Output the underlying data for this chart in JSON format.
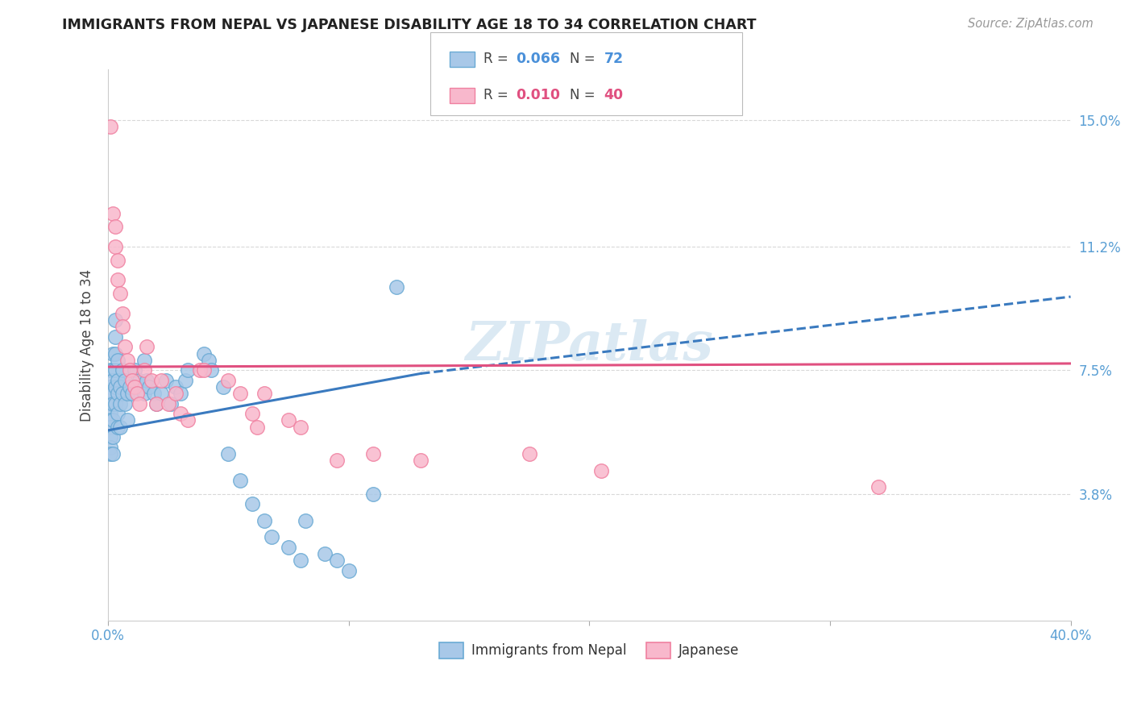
{
  "title": "IMMIGRANTS FROM NEPAL VS JAPANESE DISABILITY AGE 18 TO 34 CORRELATION CHART",
  "source": "Source: ZipAtlas.com",
  "ylabel": "Disability Age 18 to 34",
  "xlim": [
    0.0,
    0.4
  ],
  "ylim": [
    0.0,
    0.165
  ],
  "xticks": [
    0.0,
    0.1,
    0.2,
    0.3,
    0.4
  ],
  "xticklabels": [
    "0.0%",
    "",
    "",
    "",
    "40.0%"
  ],
  "ytick_positions": [
    0.038,
    0.075,
    0.112,
    0.15
  ],
  "ytick_labels": [
    "3.8%",
    "7.5%",
    "11.2%",
    "15.0%"
  ],
  "legend_labels_bottom": [
    "Immigrants from Nepal",
    "Japanese"
  ],
  "nepal_color": "#a8c8e8",
  "japanese_color": "#f8b8cc",
  "nepal_edge_color": "#6aaad4",
  "japanese_edge_color": "#f080a0",
  "nepal_line_color": "#3a7abf",
  "japanese_line_color": "#e05080",
  "watermark": "ZIPatlas",
  "background_color": "#ffffff",
  "grid_color": "#d8d8d8",
  "nepal_x": [
    0.001,
    0.001,
    0.001,
    0.001,
    0.001,
    0.001,
    0.001,
    0.001,
    0.001,
    0.001,
    0.002,
    0.002,
    0.002,
    0.002,
    0.002,
    0.002,
    0.002,
    0.002,
    0.003,
    0.003,
    0.003,
    0.003,
    0.003,
    0.003,
    0.004,
    0.004,
    0.004,
    0.004,
    0.004,
    0.005,
    0.005,
    0.005,
    0.006,
    0.006,
    0.007,
    0.007,
    0.008,
    0.008,
    0.009,
    0.01,
    0.011,
    0.013,
    0.015,
    0.015,
    0.016,
    0.017,
    0.019,
    0.02,
    0.022,
    0.024,
    0.026,
    0.028,
    0.03,
    0.032,
    0.033,
    0.04,
    0.042,
    0.043,
    0.048,
    0.05,
    0.055,
    0.06,
    0.065,
    0.068,
    0.075,
    0.08,
    0.082,
    0.09,
    0.095,
    0.1,
    0.11,
    0.12
  ],
  "nepal_y": [
    0.075,
    0.07,
    0.068,
    0.065,
    0.062,
    0.06,
    0.058,
    0.055,
    0.052,
    0.05,
    0.08,
    0.075,
    0.072,
    0.068,
    0.065,
    0.06,
    0.055,
    0.05,
    0.09,
    0.085,
    0.08,
    0.075,
    0.07,
    0.065,
    0.078,
    0.072,
    0.068,
    0.062,
    0.058,
    0.07,
    0.065,
    0.058,
    0.075,
    0.068,
    0.072,
    0.065,
    0.068,
    0.06,
    0.07,
    0.068,
    0.075,
    0.072,
    0.078,
    0.068,
    0.072,
    0.07,
    0.068,
    0.065,
    0.068,
    0.072,
    0.065,
    0.07,
    0.068,
    0.072,
    0.075,
    0.08,
    0.078,
    0.075,
    0.07,
    0.05,
    0.042,
    0.035,
    0.03,
    0.025,
    0.022,
    0.018,
    0.03,
    0.02,
    0.018,
    0.015,
    0.038,
    0.1
  ],
  "japanese_x": [
    0.001,
    0.002,
    0.003,
    0.003,
    0.004,
    0.004,
    0.005,
    0.006,
    0.006,
    0.007,
    0.008,
    0.009,
    0.01,
    0.011,
    0.012,
    0.013,
    0.015,
    0.016,
    0.018,
    0.02,
    0.022,
    0.025,
    0.028,
    0.03,
    0.033,
    0.038,
    0.04,
    0.05,
    0.055,
    0.06,
    0.062,
    0.065,
    0.075,
    0.08,
    0.095,
    0.11,
    0.13,
    0.175,
    0.205,
    0.32
  ],
  "japanese_y": [
    0.148,
    0.122,
    0.118,
    0.112,
    0.108,
    0.102,
    0.098,
    0.092,
    0.088,
    0.082,
    0.078,
    0.075,
    0.072,
    0.07,
    0.068,
    0.065,
    0.075,
    0.082,
    0.072,
    0.065,
    0.072,
    0.065,
    0.068,
    0.062,
    0.06,
    0.075,
    0.075,
    0.072,
    0.068,
    0.062,
    0.058,
    0.068,
    0.06,
    0.058,
    0.048,
    0.05,
    0.048,
    0.05,
    0.045,
    0.04
  ]
}
